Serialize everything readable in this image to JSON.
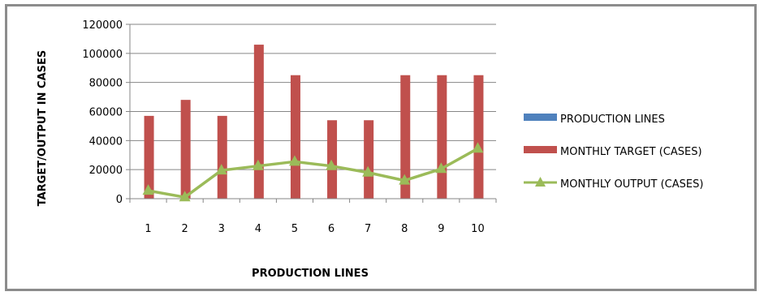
{
  "chart_data": {
    "type": "bar",
    "xlabel": "PRODUCTION LINES",
    "ylabel": "TARGET/OUTPUT IN CASES",
    "categories": [
      "1",
      "2",
      "3",
      "4",
      "5",
      "6",
      "7",
      "8",
      "9",
      "10"
    ],
    "ylim": [
      0,
      120000
    ],
    "yticks": [
      "0",
      "20000",
      "40000",
      "60000",
      "80000",
      "100000",
      "120000"
    ],
    "grid": true,
    "legend_position": "right",
    "series": [
      {
        "name": "PRODUCTION LINES",
        "kind": "bar",
        "color": "#4f81bd",
        "values": [
          1,
          2,
          3,
          4,
          5,
          6,
          7,
          8,
          9,
          10
        ]
      },
      {
        "name": "MONTHLY TARGET  (CASES)",
        "kind": "bar",
        "color": "#c0504d",
        "values": [
          57000,
          68000,
          57000,
          106000,
          85000,
          54000,
          54000,
          85000,
          85000,
          85000
        ]
      },
      {
        "name": "MONTHLY OUTPUT  (CASES)",
        "kind": "line",
        "marker": "triangle",
        "color": "#9bbb59",
        "values": [
          5500,
          1000,
          19500,
          22500,
          25500,
          22500,
          18000,
          12500,
          20500,
          34500
        ]
      }
    ]
  }
}
